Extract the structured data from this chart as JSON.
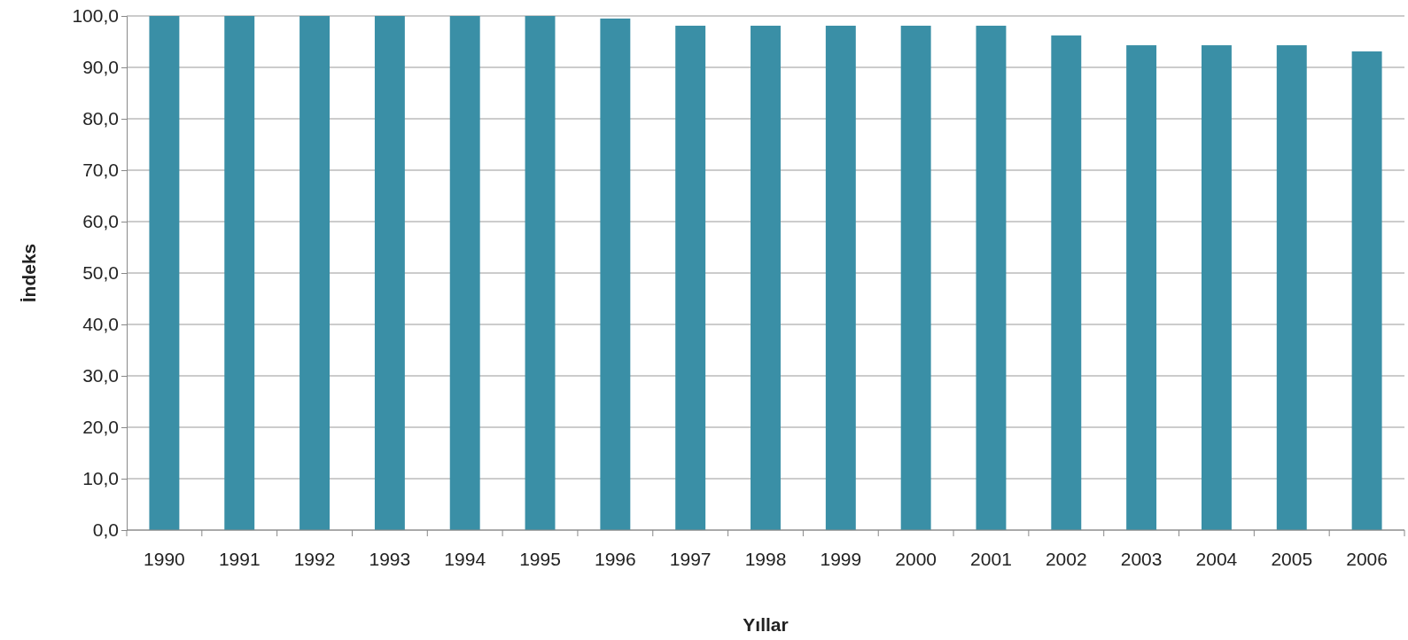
{
  "chart_data": {
    "type": "bar",
    "xlabel": "Yıllar",
    "ylabel": "İndeks",
    "categories": [
      "1990",
      "1991",
      "1992",
      "1993",
      "1994",
      "1995",
      "1996",
      "1997",
      "1998",
      "1999",
      "2000",
      "2001",
      "2002",
      "2003",
      "2004",
      "2005",
      "2006"
    ],
    "values": [
      100,
      100,
      100,
      100,
      100,
      100,
      99.5,
      98.1,
      98.1,
      98.1,
      98.1,
      98.1,
      96.2,
      94.3,
      94.3,
      94.3,
      93.1
    ],
    "color": "#3a8fa6",
    "ylim": [
      0,
      100
    ],
    "yticks": [
      {
        "value": 0,
        "label": "0,0"
      },
      {
        "value": 10,
        "label": "10,0"
      },
      {
        "value": 20,
        "label": "20,0"
      },
      {
        "value": 30,
        "label": "30,0"
      },
      {
        "value": 40,
        "label": "40,0"
      },
      {
        "value": 50,
        "label": "50,0"
      },
      {
        "value": 60,
        "label": "60,0"
      },
      {
        "value": 70,
        "label": "70,0"
      },
      {
        "value": 80,
        "label": "80,0"
      },
      {
        "value": 90,
        "label": "90,0"
      },
      {
        "value": 100,
        "label": "100,0"
      }
    ],
    "grid": "y"
  }
}
